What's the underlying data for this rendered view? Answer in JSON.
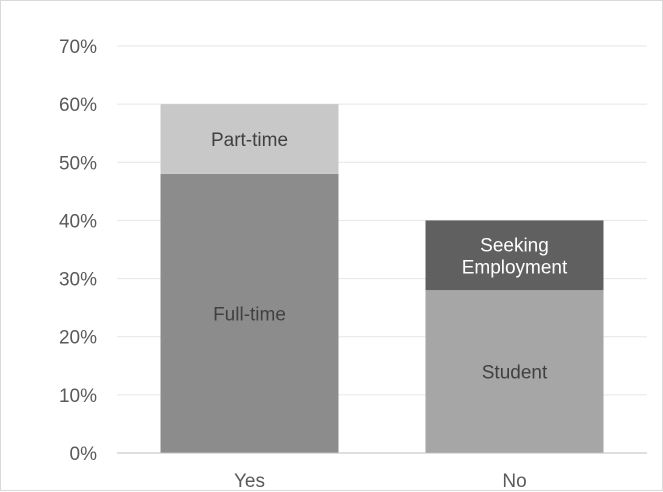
{
  "chart_data": {
    "type": "bar",
    "stacked": true,
    "categories": [
      "Yes",
      "No"
    ],
    "ylim": [
      0,
      0.7
    ],
    "yticks": [
      0,
      0.1,
      0.2,
      0.3,
      0.4,
      0.5,
      0.6,
      0.7
    ],
    "ytick_labels": [
      "0%",
      "10%",
      "20%",
      "30%",
      "40%",
      "50%",
      "60%",
      "70%"
    ],
    "grid": true,
    "bars": [
      {
        "category": "Yes",
        "segments": [
          {
            "label": "Full-time",
            "value": 0.48,
            "color": "#8c8c8c",
            "text_color": "#404040"
          },
          {
            "label": "Part-time",
            "value": 0.12,
            "color": "#c8c8c8",
            "text_color": "#404040"
          }
        ]
      },
      {
        "category": "No",
        "segments": [
          {
            "label": "Student",
            "value": 0.28,
            "color": "#a6a6a6",
            "text_color": "#404040"
          },
          {
            "label": "Seeking Employment",
            "label_lines": [
              "Seeking",
              "Employment"
            ],
            "value": 0.12,
            "color": "#606060",
            "text_color": "#ffffff"
          }
        ]
      }
    ]
  }
}
